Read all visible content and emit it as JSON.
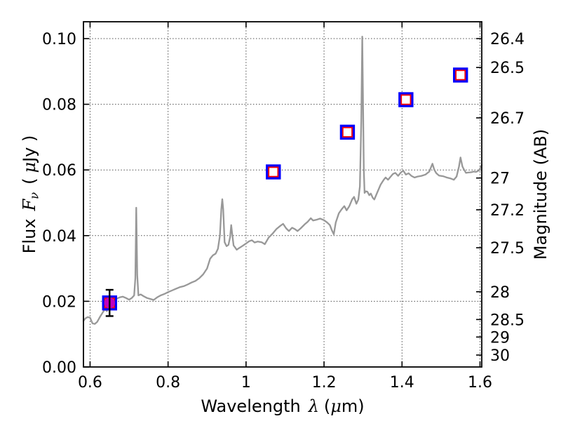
{
  "labels": {
    "x": {
      "word": "Wavelength",
      "symbol": "λ",
      "unit_open": "(",
      "unit_mu": "μ",
      "unit_close": "m)"
    },
    "y_left": {
      "word": "Flux",
      "symbol": "F",
      "symbol_sub": "ν",
      "unit_open": "(",
      "unit_mu": "μ",
      "unit_close": "Jy )"
    },
    "y_right": {
      "title": "Magnitude (AB)"
    }
  },
  "chart_data": {
    "type": "line",
    "title": "",
    "xlabel": "Wavelength λ (μm)",
    "ylabel_left": "Flux Fν (μJy)",
    "ylabel_right": "Magnitude (AB)",
    "xlim": [
      0.583,
      1.6045
    ],
    "ylim_flux": [
      0,
      0.10513
    ],
    "grid": "dotted",
    "x_ticks": {
      "values": [
        0.6,
        0.8,
        1.0,
        1.2,
        1.4,
        1.6
      ],
      "labels": [
        "0.6",
        "0.8",
        "1",
        "1.2",
        "1.4",
        "1.6"
      ]
    },
    "flux_ticks": {
      "values": [
        0,
        0.02,
        0.04,
        0.06,
        0.08,
        0.1
      ],
      "labels": [
        "0.00",
        "0.02",
        "0.04",
        "0.06",
        "0.08",
        "0.10"
      ]
    },
    "mag_ticks": {
      "values": [
        26.4,
        26.5,
        26.7,
        27,
        27.2,
        27.5,
        28,
        28.5,
        29,
        30
      ],
      "labels": [
        "26.4",
        "26.5",
        "26.7",
        "27",
        "27.2",
        "27.5",
        "28",
        "28.5",
        "29",
        "30"
      ]
    },
    "ab_zeropoint_ujy": 23.9,
    "colors": {
      "spectrum": "#989898",
      "square_outer": "#0000ff",
      "square_inner": "#ff0000",
      "observed_circle": "#bf00bf",
      "error_bar": "#000000",
      "grid": "#4d4d4d",
      "frame": "#000000"
    },
    "series": [
      {
        "name": "spectrum",
        "kind": "line",
        "points": [
          [
            0.583,
            0.014
          ],
          [
            0.588,
            0.0148
          ],
          [
            0.594,
            0.0152
          ],
          [
            0.6,
            0.015
          ],
          [
            0.606,
            0.0133
          ],
          [
            0.612,
            0.0131
          ],
          [
            0.618,
            0.0137
          ],
          [
            0.625,
            0.0152
          ],
          [
            0.632,
            0.0165
          ],
          [
            0.638,
            0.0176
          ],
          [
            0.643,
            0.017
          ],
          [
            0.648,
            0.018
          ],
          [
            0.654,
            0.0193
          ],
          [
            0.66,
            0.02
          ],
          [
            0.668,
            0.0208
          ],
          [
            0.676,
            0.0212
          ],
          [
            0.684,
            0.0214
          ],
          [
            0.692,
            0.021
          ],
          [
            0.7,
            0.0205
          ],
          [
            0.707,
            0.021
          ],
          [
            0.713,
            0.0218
          ],
          [
            0.716,
            0.027
          ],
          [
            0.7185,
            0.0485
          ],
          [
            0.721,
            0.028
          ],
          [
            0.724,
            0.0218
          ],
          [
            0.73,
            0.0221
          ],
          [
            0.738,
            0.0215
          ],
          [
            0.746,
            0.021
          ],
          [
            0.755,
            0.0207
          ],
          [
            0.763,
            0.0204
          ],
          [
            0.772,
            0.0212
          ],
          [
            0.781,
            0.0218
          ],
          [
            0.79,
            0.0222
          ],
          [
            0.8,
            0.0228
          ],
          [
            0.81,
            0.0233
          ],
          [
            0.82,
            0.0238
          ],
          [
            0.83,
            0.0243
          ],
          [
            0.84,
            0.0246
          ],
          [
            0.85,
            0.0251
          ],
          [
            0.86,
            0.0257
          ],
          [
            0.87,
            0.0262
          ],
          [
            0.88,
            0.027
          ],
          [
            0.89,
            0.0282
          ],
          [
            0.9,
            0.03
          ],
          [
            0.908,
            0.033
          ],
          [
            0.915,
            0.034
          ],
          [
            0.922,
            0.0345
          ],
          [
            0.928,
            0.036
          ],
          [
            0.933,
            0.04
          ],
          [
            0.9365,
            0.048
          ],
          [
            0.939,
            0.0511
          ],
          [
            0.9415,
            0.048
          ],
          [
            0.945,
            0.038
          ],
          [
            0.95,
            0.0368
          ],
          [
            0.955,
            0.0372
          ],
          [
            0.959,
            0.0395
          ],
          [
            0.962,
            0.0432
          ],
          [
            0.965,
            0.04
          ],
          [
            0.968,
            0.037
          ],
          [
            0.972,
            0.0364
          ],
          [
            0.976,
            0.0357
          ],
          [
            0.982,
            0.0362
          ],
          [
            0.99,
            0.0368
          ],
          [
            1.0,
            0.0376
          ],
          [
            1.008,
            0.0383
          ],
          [
            1.015,
            0.0386
          ],
          [
            1.022,
            0.0379
          ],
          [
            1.03,
            0.0382
          ],
          [
            1.04,
            0.038
          ],
          [
            1.048,
            0.0374
          ],
          [
            1.058,
            0.0394
          ],
          [
            1.068,
            0.0406
          ],
          [
            1.078,
            0.042
          ],
          [
            1.088,
            0.043
          ],
          [
            1.095,
            0.0436
          ],
          [
            1.103,
            0.0422
          ],
          [
            1.11,
            0.0414
          ],
          [
            1.118,
            0.0424
          ],
          [
            1.125,
            0.042
          ],
          [
            1.132,
            0.0414
          ],
          [
            1.14,
            0.0422
          ],
          [
            1.15,
            0.0434
          ],
          [
            1.158,
            0.0442
          ],
          [
            1.166,
            0.0453
          ],
          [
            1.172,
            0.0446
          ],
          [
            1.18,
            0.0448
          ],
          [
            1.19,
            0.0452
          ],
          [
            1.2,
            0.0447
          ],
          [
            1.208,
            0.044
          ],
          [
            1.215,
            0.0432
          ],
          [
            1.2205,
            0.0415
          ],
          [
            1.225,
            0.0404
          ],
          [
            1.23,
            0.044
          ],
          [
            1.238,
            0.0468
          ],
          [
            1.245,
            0.048
          ],
          [
            1.252,
            0.049
          ],
          [
            1.258,
            0.0477
          ],
          [
            1.265,
            0.049
          ],
          [
            1.272,
            0.051
          ],
          [
            1.277,
            0.0518
          ],
          [
            1.283,
            0.0497
          ],
          [
            1.288,
            0.051
          ],
          [
            1.292,
            0.055
          ],
          [
            1.2955,
            0.075
          ],
          [
            1.298,
            0.1006
          ],
          [
            1.3005,
            0.075
          ],
          [
            1.302,
            0.06
          ],
          [
            1.304,
            0.053
          ],
          [
            1.307,
            0.0535
          ],
          [
            1.311,
            0.0534
          ],
          [
            1.316,
            0.0523
          ],
          [
            1.32,
            0.0528
          ],
          [
            1.325,
            0.0515
          ],
          [
            1.329,
            0.051
          ],
          [
            1.336,
            0.053
          ],
          [
            1.345,
            0.0555
          ],
          [
            1.353,
            0.057
          ],
          [
            1.358,
            0.0577
          ],
          [
            1.364,
            0.057
          ],
          [
            1.371,
            0.058
          ],
          [
            1.377,
            0.0588
          ],
          [
            1.383,
            0.0591
          ],
          [
            1.39,
            0.0582
          ],
          [
            1.397,
            0.0592
          ],
          [
            1.403,
            0.0598
          ],
          [
            1.41,
            0.0586
          ],
          [
            1.417,
            0.059
          ],
          [
            1.424,
            0.0582
          ],
          [
            1.432,
            0.0577
          ],
          [
            1.44,
            0.058
          ],
          [
            1.45,
            0.0582
          ],
          [
            1.46,
            0.0586
          ],
          [
            1.47,
            0.0595
          ],
          [
            1.478,
            0.0619
          ],
          [
            1.483,
            0.06
          ],
          [
            1.488,
            0.059
          ],
          [
            1.495,
            0.0583
          ],
          [
            1.505,
            0.0581
          ],
          [
            1.515,
            0.0577
          ],
          [
            1.525,
            0.0574
          ],
          [
            1.533,
            0.057
          ],
          [
            1.54,
            0.058
          ],
          [
            1.546,
            0.061
          ],
          [
            1.55,
            0.0638
          ],
          [
            1.555,
            0.061
          ],
          [
            1.559,
            0.0601
          ],
          [
            1.564,
            0.0591
          ],
          [
            1.57,
            0.0592
          ],
          [
            1.577,
            0.0593
          ],
          [
            1.584,
            0.0595
          ],
          [
            1.59,
            0.0594
          ],
          [
            1.597,
            0.0598
          ],
          [
            1.602,
            0.0608
          ],
          [
            1.6045,
            0.0615
          ]
        ]
      },
      {
        "name": "photometry-squares",
        "kind": "scatter-square",
        "points": [
          [
            0.65,
            0.0195
          ],
          [
            1.07,
            0.0594
          ],
          [
            1.26,
            0.0715
          ],
          [
            1.41,
            0.0814
          ],
          [
            1.55,
            0.0889
          ]
        ]
      },
      {
        "name": "observed-point",
        "kind": "scatter-circle-errorbar",
        "points": [
          [
            0.65,
            0.0195
          ]
        ],
        "yerr": 0.004
      }
    ]
  }
}
